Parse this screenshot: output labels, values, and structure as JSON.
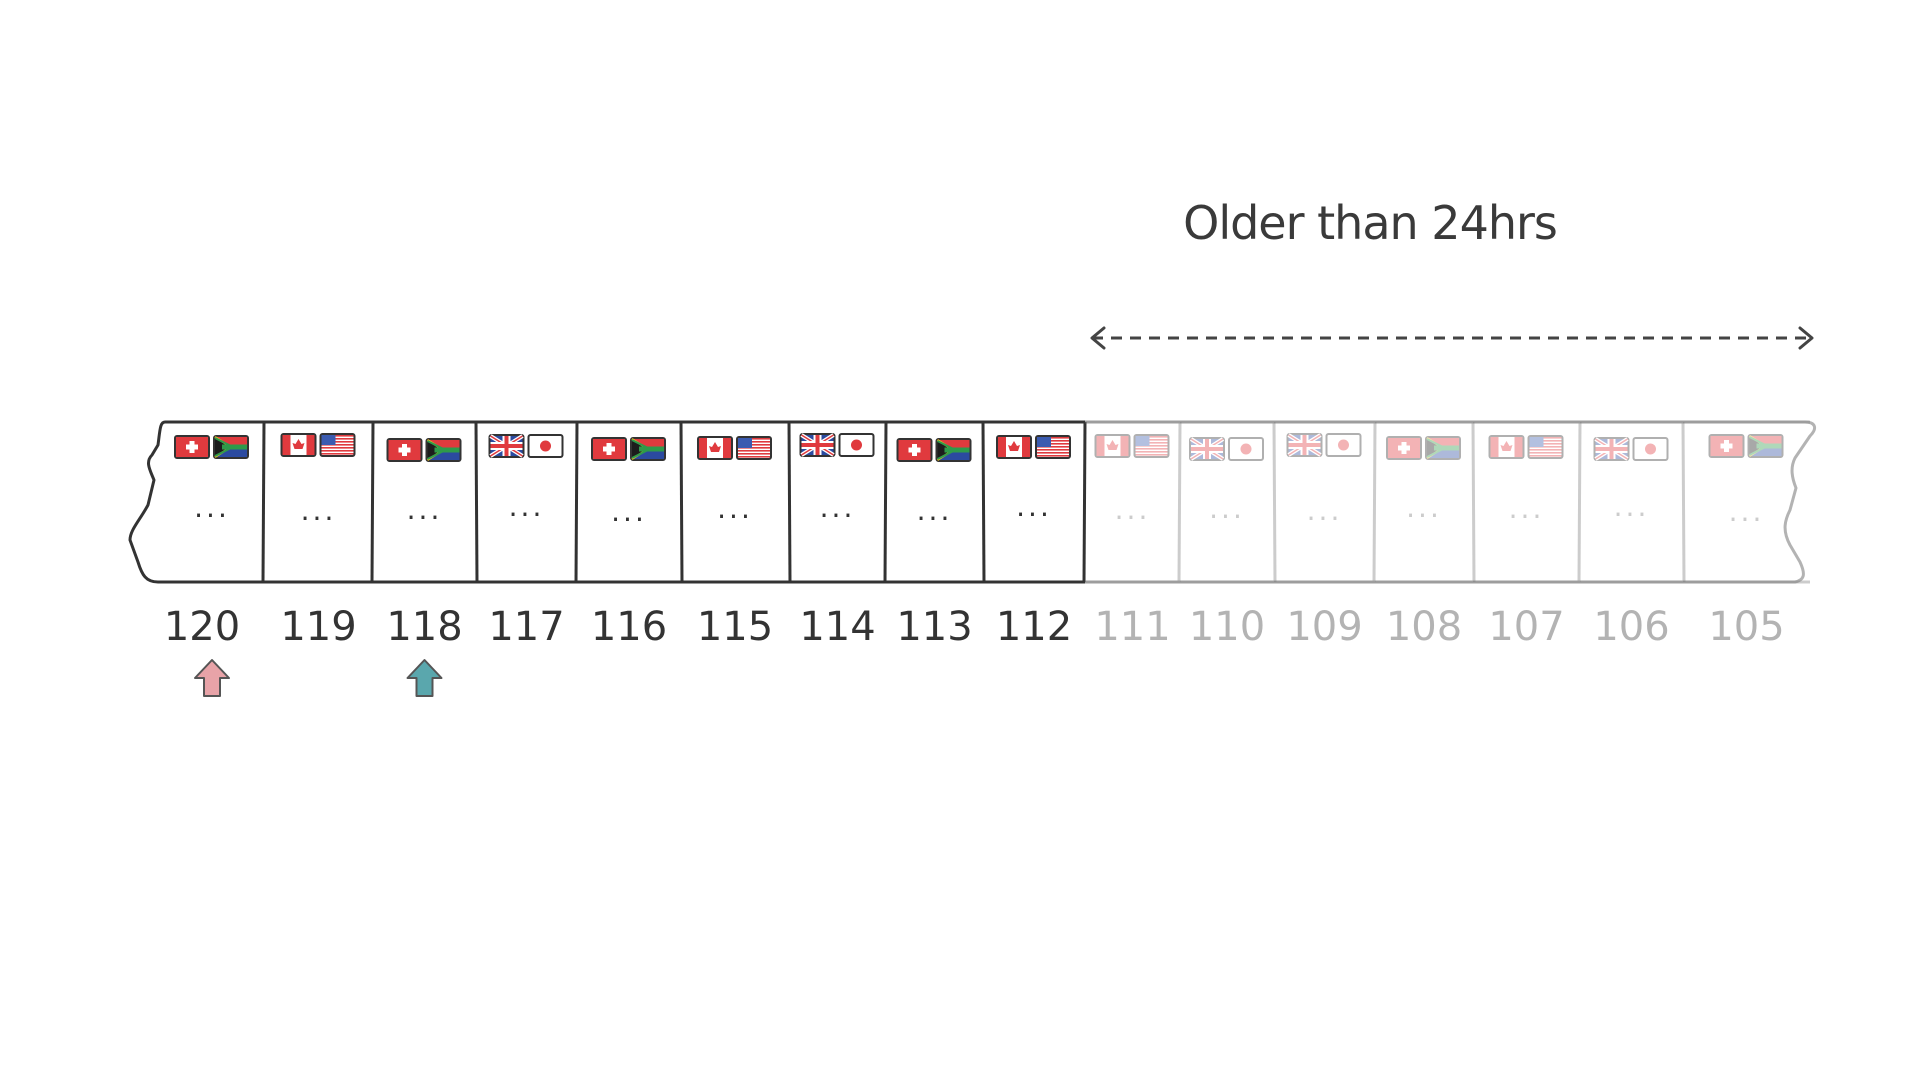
{
  "caption": "Older than 24hrs",
  "colors": {
    "ink": "#333333",
    "faded": "#b3b3b3",
    "arrow_pink": "#e8a3a8",
    "arrow_teal": "#5aa7ad"
  },
  "segments": [
    {
      "label": "120",
      "flags": [
        "swiss-flag-icon",
        "south-africa-flag-icon"
      ],
      "content": "...",
      "faded": false
    },
    {
      "label": "119",
      "flags": [
        "canada-flag-icon",
        "usa-flag-icon"
      ],
      "content": "...",
      "faded": false
    },
    {
      "label": "118",
      "flags": [
        "swiss-flag-icon",
        "south-africa-flag-icon"
      ],
      "content": "...",
      "faded": false
    },
    {
      "label": "117",
      "flags": [
        "uk-flag-icon",
        "japan-flag-icon"
      ],
      "content": "...",
      "faded": false
    },
    {
      "label": "116",
      "flags": [
        "swiss-flag-icon",
        "south-africa-flag-icon"
      ],
      "content": "...",
      "faded": false
    },
    {
      "label": "115",
      "flags": [
        "canada-flag-icon",
        "usa-flag-icon"
      ],
      "content": "...",
      "faded": false
    },
    {
      "label": "114",
      "flags": [
        "uk-flag-icon",
        "japan-flag-icon"
      ],
      "content": "...",
      "faded": false
    },
    {
      "label": "113",
      "flags": [
        "swiss-flag-icon",
        "south-africa-flag-icon"
      ],
      "content": "...",
      "faded": false
    },
    {
      "label": "112",
      "flags": [
        "canada-flag-icon",
        "usa-flag-icon"
      ],
      "content": "...",
      "faded": false
    },
    {
      "label": "111",
      "flags": [
        "canada-flag-icon",
        "usa-flag-icon"
      ],
      "content": "...",
      "faded": true
    },
    {
      "label": "110",
      "flags": [
        "uk-flag-icon",
        "japan-flag-icon"
      ],
      "content": "...",
      "faded": true
    },
    {
      "label": "109",
      "flags": [
        "uk-flag-icon",
        "japan-flag-icon"
      ],
      "content": "...",
      "faded": true
    },
    {
      "label": "108",
      "flags": [
        "swiss-flag-icon",
        "south-africa-flag-icon"
      ],
      "content": "...",
      "faded": true
    },
    {
      "label": "107",
      "flags": [
        "canada-flag-icon",
        "usa-flag-icon"
      ],
      "content": "...",
      "faded": true
    },
    {
      "label": "106",
      "flags": [
        "uk-flag-icon",
        "japan-flag-icon"
      ],
      "content": "...",
      "faded": true
    },
    {
      "label": "105",
      "flags": [
        "swiss-flag-icon",
        "south-africa-flag-icon"
      ],
      "content": "...",
      "faded": true
    }
  ],
  "markers": [
    {
      "name": "pink-arrow-icon",
      "segment": "120",
      "color_key": "arrow_pink"
    },
    {
      "name": "teal-arrow-icon",
      "segment": "118",
      "color_key": "arrow_teal"
    }
  ]
}
